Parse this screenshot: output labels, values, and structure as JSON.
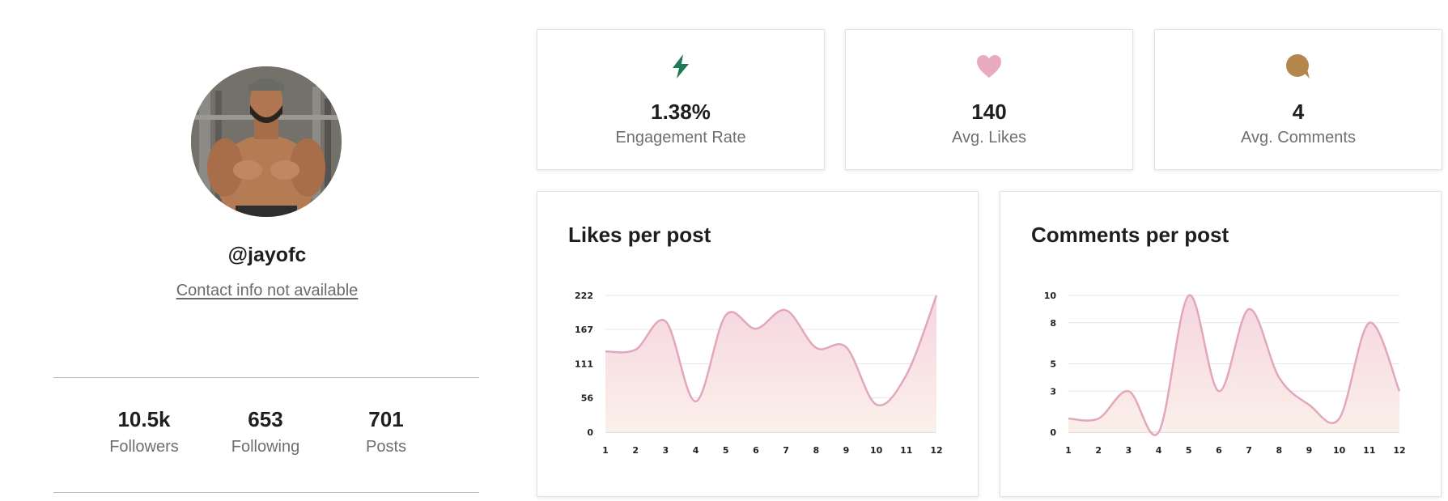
{
  "profile": {
    "username": "@jayofc",
    "contact": "Contact info not available",
    "stats": [
      {
        "value": "10.5k",
        "label": "Followers"
      },
      {
        "value": "653",
        "label": "Following"
      },
      {
        "value": "701",
        "label": "Posts"
      }
    ]
  },
  "metrics": [
    {
      "value": "1.38%",
      "label": "Engagement Rate",
      "icon": "lightning-icon",
      "color": "#1d7a55"
    },
    {
      "value": "140",
      "label": "Avg. Likes",
      "icon": "heart-icon",
      "color": "#e8a9c1"
    },
    {
      "value": "4",
      "label": "Avg. Comments",
      "icon": "comment-icon",
      "color": "#b3874c"
    }
  ],
  "colors": {
    "line": "#e3a7bd",
    "fill_top": "#f5d3de",
    "fill_bottom": "#fbefe8",
    "grid": "#e6e6e6"
  },
  "chart_data": [
    {
      "type": "area",
      "title": "Likes per post",
      "x": [
        1,
        2,
        3,
        4,
        5,
        6,
        7,
        8,
        9,
        10,
        11,
        12
      ],
      "y_ticks": [
        0,
        56,
        111,
        167,
        222
      ],
      "ylim": [
        0,
        222
      ],
      "series": [
        {
          "values": [
            131,
            134,
            180,
            50,
            190,
            168,
            198,
            137,
            138,
            45,
            93,
            222
          ]
        }
      ],
      "grid": true
    },
    {
      "type": "area",
      "title": "Comments per post",
      "x": [
        1,
        2,
        3,
        4,
        5,
        6,
        7,
        8,
        9,
        10,
        11,
        12
      ],
      "y_ticks": [
        0,
        3,
        5,
        8,
        10
      ],
      "ylim": [
        0,
        10
      ],
      "series": [
        {
          "values": [
            1,
            1,
            3,
            0,
            10,
            3,
            9,
            4,
            2,
            1,
            8,
            3
          ]
        }
      ],
      "grid": true
    }
  ]
}
